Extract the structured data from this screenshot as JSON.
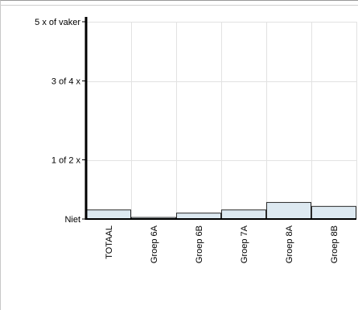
{
  "chart_data": {
    "type": "bar",
    "categories": [
      "TOTAAL",
      "Groep 6A",
      "Groep 6B",
      "Groep 7A",
      "Groep 8A",
      "Groep 8B"
    ],
    "values": [
      0.24,
      0.05,
      0.16,
      0.24,
      0.43,
      0.33
    ],
    "y_tick_values": [
      0,
      1.5,
      3.5,
      5
    ],
    "y_tick_labels": [
      "Niet",
      "1 of 2 x",
      "3 of 4 x",
      "5 x of vaker"
    ],
    "ylim": [
      0,
      5
    ],
    "grid": true,
    "legend": "none",
    "colors": {
      "bar_fill": "#dde9f1",
      "bar_stroke": "#2a2a2a",
      "axis": "#000000",
      "grid": "#e2e2e2"
    }
  }
}
